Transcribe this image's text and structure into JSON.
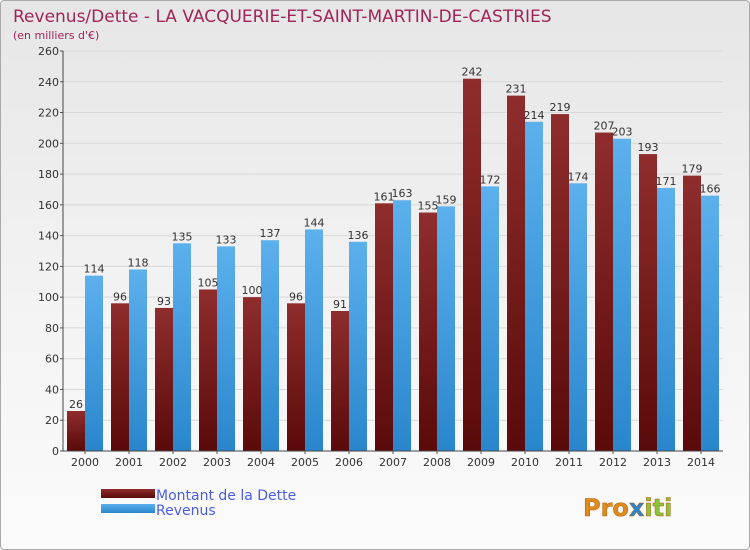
{
  "chart_data": {
    "type": "bar",
    "title": "Revenus/Dette - LA VACQUERIE-ET-SAINT-MARTIN-DE-CASTRIES",
    "subtitle": "(en milliers d'€)",
    "categories": [
      "2000",
      "2001",
      "2002",
      "2003",
      "2004",
      "2005",
      "2006",
      "2007",
      "2008",
      "2009",
      "2010",
      "2011",
      "2012",
      "2013",
      "2014"
    ],
    "series": [
      {
        "name": "Montant de la Dette",
        "color": "#7a1a1a",
        "values": [
          26,
          96,
          93,
          105,
          100,
          96,
          91,
          161,
          155,
          242,
          231,
          219,
          207,
          193,
          179
        ]
      },
      {
        "name": "Revenus",
        "color": "#3a9be0",
        "values": [
          114,
          118,
          135,
          133,
          137,
          144,
          136,
          163,
          159,
          172,
          214,
          174,
          203,
          171,
          166
        ]
      }
    ],
    "ylim": [
      0,
      260
    ],
    "yticks": [
      0,
      20,
      40,
      60,
      80,
      100,
      120,
      140,
      160,
      180,
      200,
      220,
      240,
      260
    ],
    "grid": true,
    "legend": "bottom-left",
    "xlabel": "",
    "ylabel": ""
  },
  "branding": {
    "logo_text": "Proxiti"
  },
  "colors": {
    "title": "#a0245a",
    "legend_text": "#4a5de0",
    "axis_text": "#333333"
  }
}
